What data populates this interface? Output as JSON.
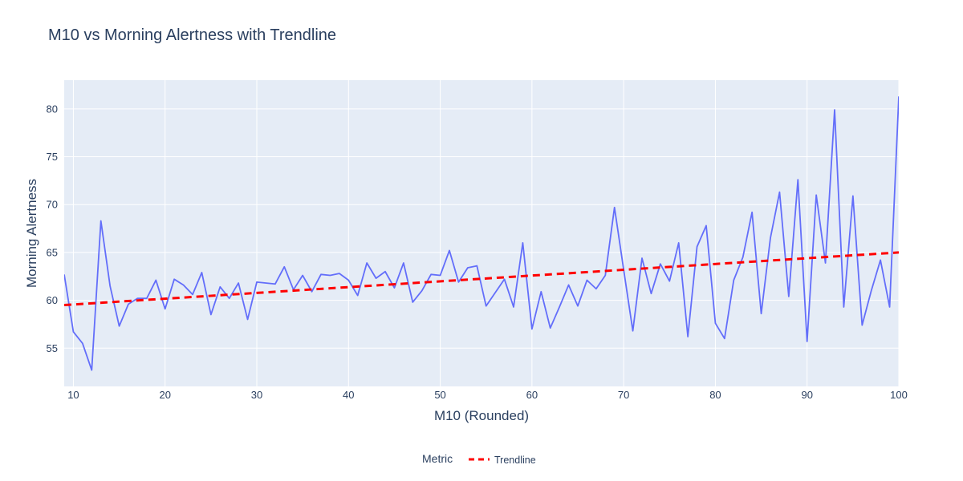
{
  "chart_data": {
    "type": "line",
    "title": "M10 vs Morning Alertness with Trendline",
    "xlabel": "M10 (Rounded)",
    "ylabel": "Morning Alertness",
    "xlim": [
      9,
      100
    ],
    "ylim": [
      51,
      83
    ],
    "x_ticks": [
      10,
      20,
      30,
      40,
      50,
      60,
      70,
      80,
      90,
      100
    ],
    "y_ticks": [
      55,
      60,
      65,
      70,
      75,
      80
    ],
    "grid": true,
    "legend": {
      "title": "Metric",
      "placement": "bottom-center"
    },
    "series": [
      {
        "style": "solid",
        "color": "#636efa",
        "x": [
          9,
          10,
          11,
          12,
          13,
          14,
          15,
          16,
          17,
          18,
          19,
          20,
          21,
          22,
          23,
          24,
          25,
          26,
          27,
          28,
          29,
          30,
          32,
          33,
          34,
          35,
          36,
          37,
          38,
          39,
          40,
          41,
          42,
          43,
          44,
          45,
          46,
          47,
          48,
          49,
          50,
          51,
          52,
          53,
          54,
          55,
          57,
          58,
          59,
          60,
          61,
          62,
          63,
          64,
          65,
          66,
          67,
          68,
          69,
          70,
          71,
          72,
          73,
          74,
          75,
          76,
          77,
          78,
          79,
          80,
          81,
          82,
          83,
          84,
          85,
          86,
          87,
          88,
          89,
          90,
          91,
          92,
          93,
          94,
          95,
          96,
          97,
          98,
          99,
          100
        ],
        "y": [
          62.7,
          56.7,
          55.5,
          52.7,
          68.3,
          61.5,
          57.3,
          59.6,
          60.2,
          60.2,
          62.1,
          59.1,
          62.2,
          61.6,
          60.6,
          62.9,
          58.5,
          61.4,
          60.2,
          61.8,
          58.0,
          61.9,
          61.7,
          63.5,
          61.1,
          62.6,
          60.9,
          62.7,
          62.6,
          62.8,
          62.1,
          60.5,
          63.9,
          62.3,
          63.0,
          61.3,
          63.9,
          59.8,
          61.0,
          62.7,
          62.6,
          65.2,
          61.9,
          63.4,
          63.6,
          59.4,
          62.2,
          59.3,
          66.0,
          57.0,
          60.9,
          57.1,
          59.3,
          61.6,
          59.4,
          62.1,
          61.2,
          62.6,
          69.7,
          63.2,
          56.8,
          64.4,
          60.7,
          63.8,
          62.0,
          66.0,
          56.2,
          65.6,
          67.8,
          57.6,
          56.0,
          62.1,
          64.5,
          69.2,
          58.6,
          66.5,
          71.3,
          60.4,
          72.6,
          55.7,
          71.0,
          63.9,
          79.9,
          59.3,
          70.9,
          57.4,
          61.0,
          64.2,
          59.3,
          81.3
        ]
      },
      {
        "name": "Trendline",
        "style": "dashed",
        "color": "#ff0000",
        "x": [
          9,
          100
        ],
        "y": [
          59.5,
          65.0
        ]
      }
    ]
  }
}
